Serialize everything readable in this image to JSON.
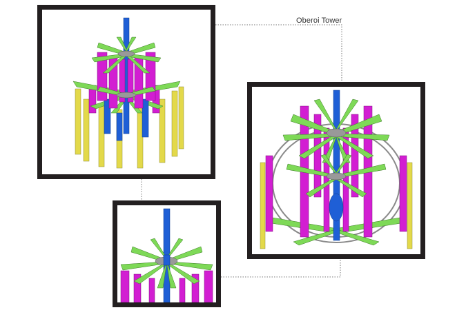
{
  "title": "Oberoi Tower",
  "colors": {
    "frame": "#231f20",
    "core": "#1f5fd6",
    "arms": "#7ed957",
    "walls": "#d21ed2",
    "columns": "#e3d94a",
    "steel": "#8a8a8a"
  },
  "views": [
    {
      "id": "top-left",
      "description_name": "model-view-full-tower"
    },
    {
      "id": "right",
      "description_name": "model-view-perspective"
    },
    {
      "id": "bottom",
      "description_name": "model-view-top-core"
    }
  ]
}
